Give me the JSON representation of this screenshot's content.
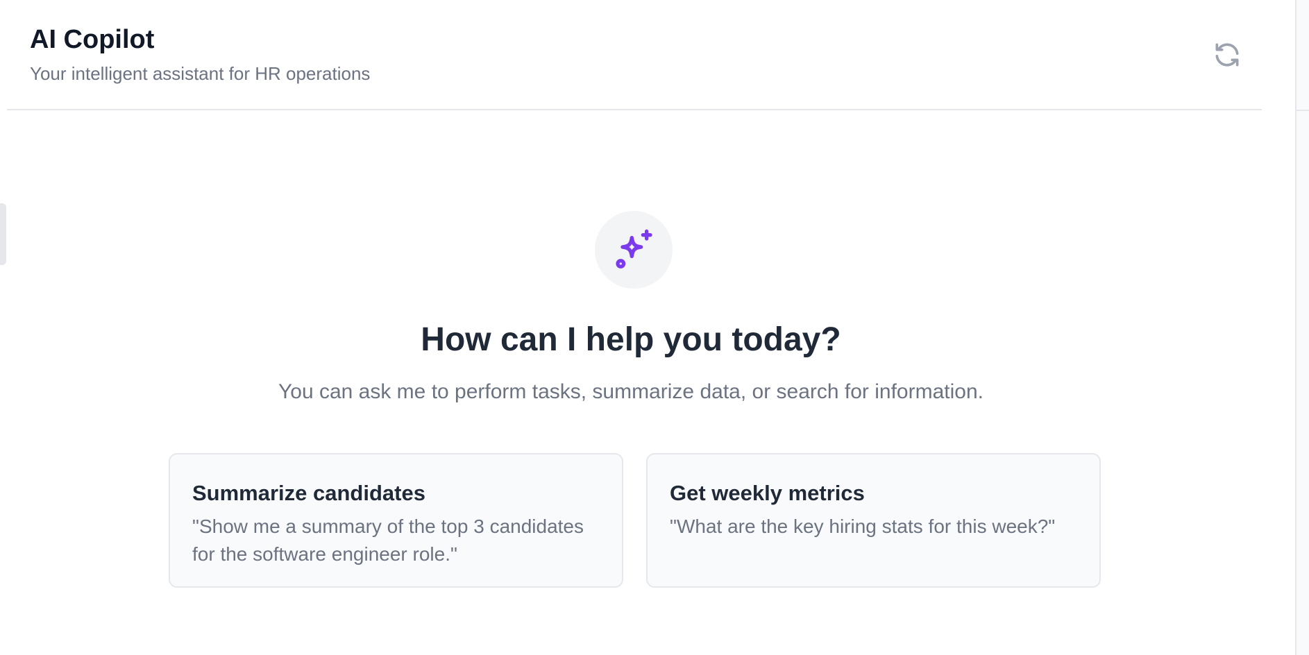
{
  "header": {
    "title": "AI Copilot",
    "subtitle": "Your intelligent assistant for HR operations",
    "refresh_icon": "refresh-icon"
  },
  "welcome": {
    "icon": "sparkles-icon",
    "accent": "#7c3aed",
    "heading": "How can I help you today?",
    "subheading": "You can ask me to perform tasks, summarize data, or search for information."
  },
  "suggestions": [
    {
      "title": "Summarize candidates",
      "prompt": "\"Show me a summary of the top 3 candidates for the software engineer role.\""
    },
    {
      "title": "Get weekly metrics",
      "prompt": "\"What are the key hiring stats for this week?\""
    }
  ]
}
